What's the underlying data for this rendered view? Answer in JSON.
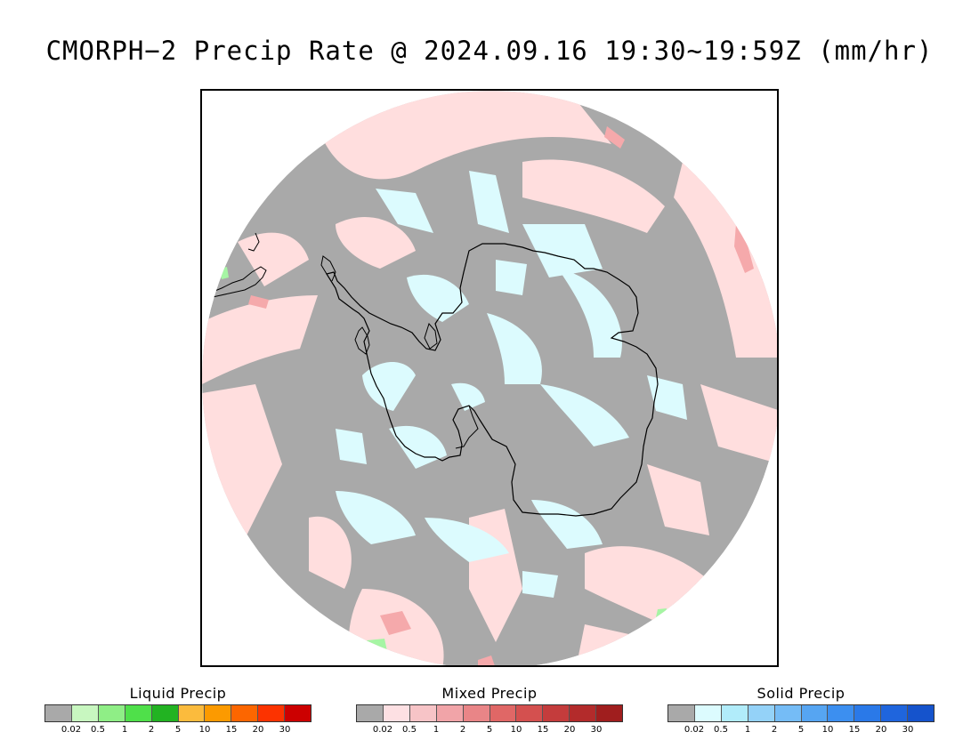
{
  "title": "CMORPH−2 Precip Rate @ 2024.09.16 19:30~19:59Z (mm/hr)",
  "map": {
    "projection": "south-polar-stereographic",
    "region": "Antarctica",
    "colors": {
      "trace": "#a9a9a9",
      "mixed_light": "#ffdede",
      "mixed_mid": "#f5a9ab",
      "solid_light": "#dcfbfe",
      "liquid_light": "#a6f5a4",
      "coastline": "#000000"
    }
  },
  "legends": [
    {
      "title": "Liquid Precip",
      "colors": [
        "#a9a9a9",
        "#c8f7c0",
        "#8fee86",
        "#4fe04a",
        "#22b322",
        "#fbbb3d",
        "#fc9a00",
        "#fc6600",
        "#fc3300",
        "#cc0000"
      ],
      "ticks": [
        "0.02",
        "0.5",
        "1",
        "2",
        "5",
        "10",
        "15",
        "20",
        "30"
      ]
    },
    {
      "title": "Mixed Precip",
      "colors": [
        "#a9a9a9",
        "#fde0e3",
        "#f7c4c7",
        "#f1a4a8",
        "#e98587",
        "#e06766",
        "#d4504f",
        "#c43c3c",
        "#b32b2b",
        "#a01e1e"
      ],
      "ticks": [
        "0.02",
        "0.5",
        "1",
        "2",
        "5",
        "10",
        "15",
        "20",
        "30"
      ]
    },
    {
      "title": "Solid Precip",
      "colors": [
        "#a9a9a9",
        "#dcfbfe",
        "#b1ecfa",
        "#94d2f8",
        "#75bcf6",
        "#56a5f2",
        "#3c8ff0",
        "#2a79e8",
        "#1f65dd",
        "#1553cc"
      ],
      "ticks": [
        "0.02",
        "0.5",
        "1",
        "2",
        "5",
        "10",
        "15",
        "20",
        "30"
      ]
    }
  ]
}
